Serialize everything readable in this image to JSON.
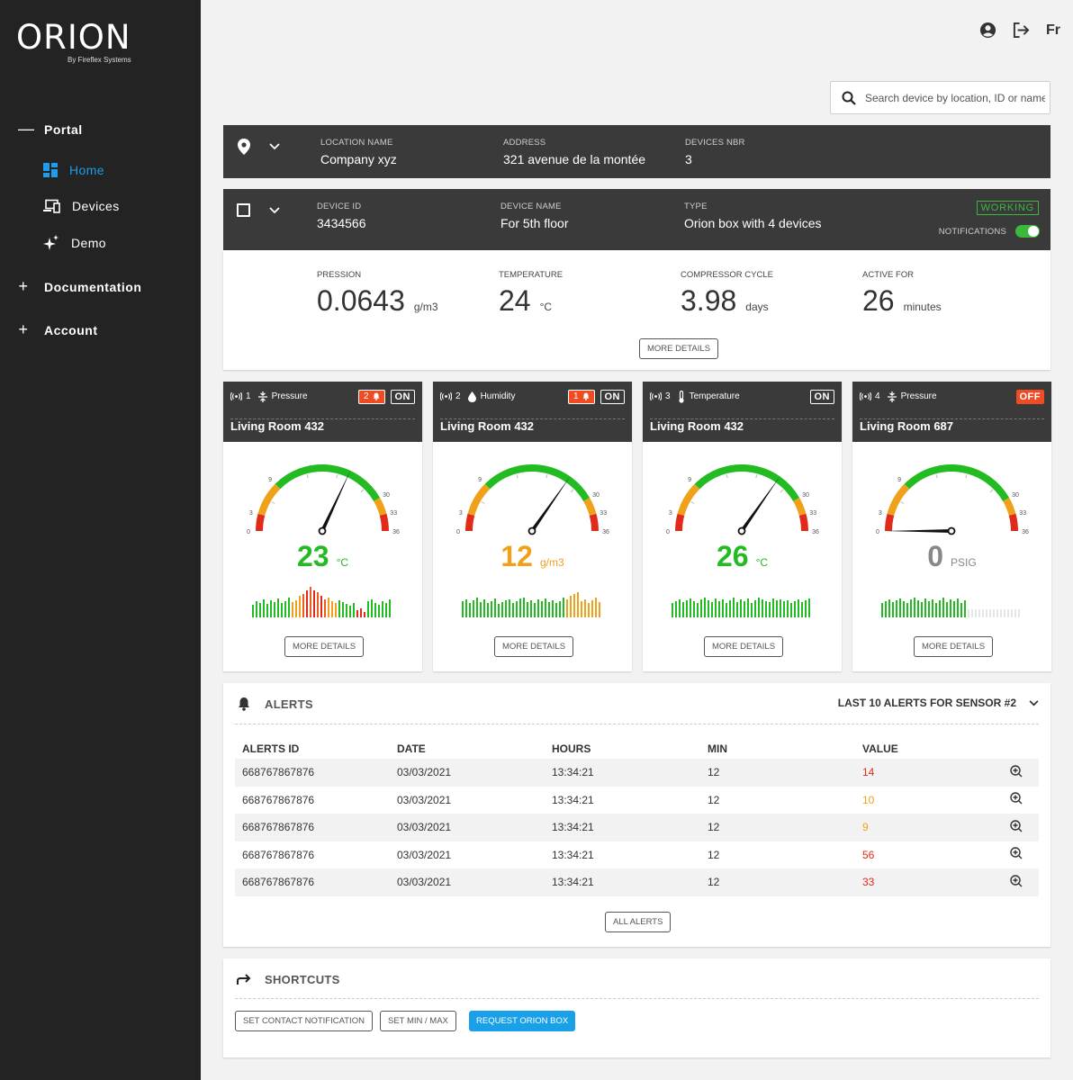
{
  "brand": {
    "name": "ORION",
    "subtitle": "By Fireflex Systems"
  },
  "sidebar": {
    "sections": [
      {
        "label": "Portal",
        "sign": "—",
        "expanded": true
      },
      {
        "label": "Documentation",
        "sign": "+"
      },
      {
        "label": "Account",
        "sign": "+"
      }
    ],
    "items": [
      {
        "label": "Home",
        "icon": "dashboard-icon",
        "active": true
      },
      {
        "label": "Devices",
        "icon": "devices-icon"
      },
      {
        "label": "Demo",
        "icon": "sparkle-icon"
      }
    ]
  },
  "header": {
    "language": "Fr",
    "icons": [
      "account-icon",
      "logout-icon"
    ]
  },
  "search": {
    "placeholder": "Search device by location, ID or name"
  },
  "location": {
    "name_caption": "LOCATION NAME",
    "name": "Company xyz",
    "address_caption": "ADDRESS",
    "address": "321 avenue de la montée",
    "devices_caption": "DEVICES NBR",
    "devices": "3"
  },
  "device": {
    "id_caption": "DEVICE ID",
    "id": "3434566",
    "name_caption": "DEVICE NAME",
    "name": "For 5th floor",
    "type_caption": "TYPE",
    "type": "Orion box with 4 devices",
    "status": "WORKING",
    "notifications_label": "NOTIFICATIONS",
    "notifications_on": true
  },
  "metrics": [
    {
      "caption": "PRESSION",
      "value": "0.0643",
      "unit": "g/m3"
    },
    {
      "caption": "TEMPERATURE",
      "value": "24",
      "unit": "°C"
    },
    {
      "caption": "COMPRESSOR CYCLE",
      "value": "3.98",
      "unit": "days"
    },
    {
      "caption": "ACTIVE FOR",
      "value": "26",
      "unit": "minutes"
    }
  ],
  "more_details_label": "MORE DETAILS",
  "gauge_ticks": [
    "0",
    "3",
    "9",
    "30",
    "33",
    "36"
  ],
  "sensors": [
    {
      "num": "1",
      "type": "Pressure",
      "alerts": "2",
      "state": "ON",
      "room": "Living Room 432",
      "value": "23",
      "unit": "°C",
      "needle": 23,
      "color": "#22bb22"
    },
    {
      "num": "2",
      "type": "Humidity",
      "alerts": "1",
      "state": "ON",
      "room": "Living Room 432",
      "value": "12",
      "unit": "g/m3",
      "needle": 25,
      "color": "#f0a11a"
    },
    {
      "num": "3",
      "type": "Temperature",
      "alerts": "",
      "state": "ON",
      "room": "Living Room 432",
      "value": "26",
      "unit": "°C",
      "needle": 25,
      "color": "#22bb22"
    },
    {
      "num": "4",
      "type": "Pressure",
      "alerts": "",
      "state": "OFF",
      "room": "Living Room 687",
      "value": "0",
      "unit": "PSIG",
      "needle": 0,
      "color": "#888888"
    }
  ],
  "alerts": {
    "title": "ALERTS",
    "filter": "LAST 10 ALERTS FOR SENSOR #2",
    "columns": [
      "ALERTS ID",
      "DATE",
      "HOURS",
      "MIN",
      "VALUE"
    ],
    "rows": [
      {
        "id": "668767867876",
        "date": "03/03/2021",
        "hours": "13:34:21",
        "min": "12",
        "value": "14",
        "color": "#e02b1a"
      },
      {
        "id": "668767867876",
        "date": "03/03/2021",
        "hours": "13:34:21",
        "min": "12",
        "value": "10",
        "color": "#f0a11a"
      },
      {
        "id": "668767867876",
        "date": "03/03/2021",
        "hours": "13:34:21",
        "min": "12",
        "value": "9",
        "color": "#f0a11a"
      },
      {
        "id": "668767867876",
        "date": "03/03/2021",
        "hours": "13:34:21",
        "min": "12",
        "value": "56",
        "color": "#e02b1a"
      },
      {
        "id": "668767867876",
        "date": "03/03/2021",
        "hours": "13:34:21",
        "min": "12",
        "value": "33",
        "color": "#e02b1a"
      }
    ],
    "all_label": "ALL ALERTS"
  },
  "shortcuts": {
    "title": "SHORTCUTS",
    "buttons": [
      "SET CONTACT NOTIFICATION",
      "SET MIN / MAX",
      "REQUEST ORION BOX"
    ]
  },
  "colors": {
    "accent": "#1e9bea",
    "working": "#3cb83c",
    "alert": "#ef4c23",
    "sidebar": "#232323",
    "panel": "#3a3a3a"
  }
}
